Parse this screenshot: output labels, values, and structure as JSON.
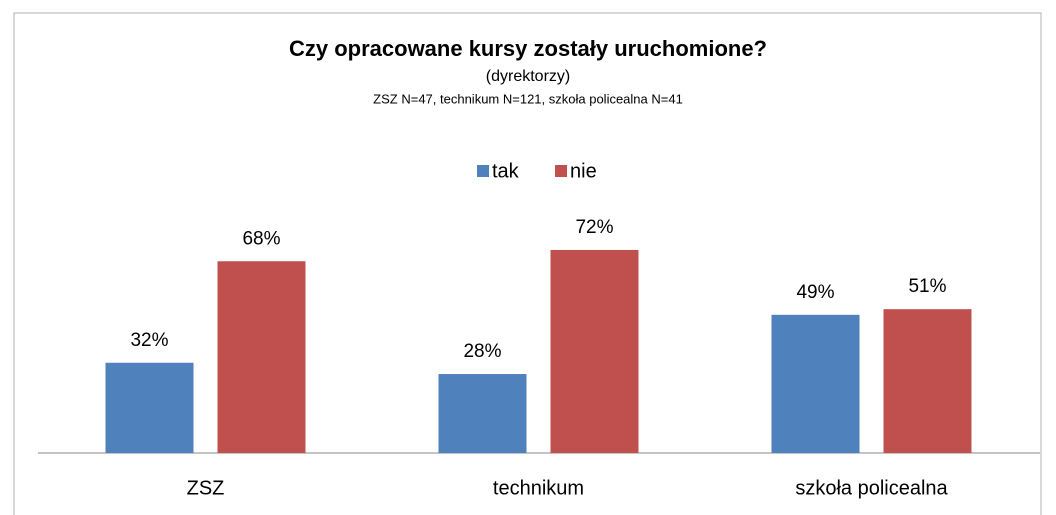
{
  "chart_data": {
    "type": "bar",
    "title": "Czy opracowane kursy zostały uruchomione?",
    "subtitle": [
      "(dyrektorzy)",
      "ZSZ N=47, technikum N=121, szkoła policealna N=41"
    ],
    "categories": [
      "ZSZ",
      "technikum",
      "szkoła policealna"
    ],
    "series": [
      {
        "name": "tak",
        "color": "#4f81bd",
        "values": [
          32,
          28,
          49
        ],
        "value_labels": [
          "32%",
          "28%",
          "49%"
        ]
      },
      {
        "name": "nie",
        "color": "#c0504d",
        "values": [
          68,
          72,
          51
        ],
        "value_labels": [
          "68%",
          "72%",
          "51%"
        ]
      }
    ],
    "legend": "top"
  }
}
